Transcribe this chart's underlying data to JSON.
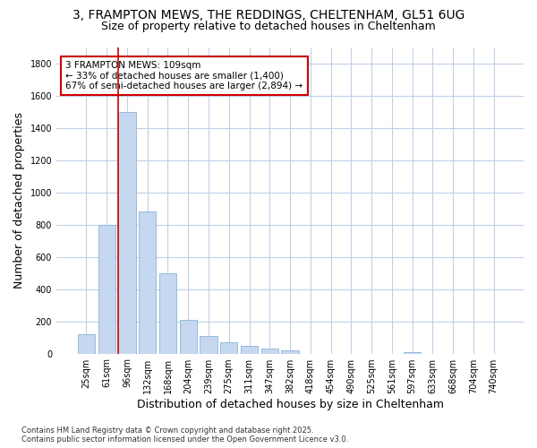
{
  "title_line1": "3, FRAMPTON MEWS, THE REDDINGS, CHELTENHAM, GL51 6UG",
  "title_line2": "Size of property relative to detached houses in Cheltenham",
  "xlabel": "Distribution of detached houses by size in Cheltenham",
  "ylabel": "Number of detached properties",
  "categories": [
    "25sqm",
    "61sqm",
    "96sqm",
    "132sqm",
    "168sqm",
    "204sqm",
    "239sqm",
    "275sqm",
    "311sqm",
    "347sqm",
    "382sqm",
    "418sqm",
    "454sqm",
    "490sqm",
    "525sqm",
    "561sqm",
    "597sqm",
    "633sqm",
    "668sqm",
    "704sqm",
    "740sqm"
  ],
  "values": [
    120,
    800,
    1500,
    880,
    500,
    210,
    110,
    70,
    45,
    30,
    20,
    0,
    0,
    0,
    0,
    0,
    10,
    0,
    0,
    0,
    0
  ],
  "bar_color": "#c5d8f0",
  "bar_edge_color": "#8ab4d8",
  "vline_index": 2,
  "vline_color": "#cc0000",
  "annotation_text": "3 FRAMPTON MEWS: 109sqm\n← 33% of detached houses are smaller (1,400)\n67% of semi-detached houses are larger (2,894) →",
  "annotation_box_facecolor": "#ffffff",
  "annotation_box_edgecolor": "#cc0000",
  "ylim": [
    0,
    1900
  ],
  "yticks": [
    0,
    200,
    400,
    600,
    800,
    1000,
    1200,
    1400,
    1600,
    1800
  ],
  "grid_color": "#c0d0e8",
  "bg_color": "#ffffff",
  "footer": "Contains HM Land Registry data © Crown copyright and database right 2025.\nContains public sector information licensed under the Open Government Licence v3.0.",
  "title_fontsize": 10,
  "subtitle_fontsize": 9,
  "axis_label_fontsize": 9,
  "tick_fontsize": 7,
  "footer_fontsize": 6,
  "annot_fontsize": 7.5
}
